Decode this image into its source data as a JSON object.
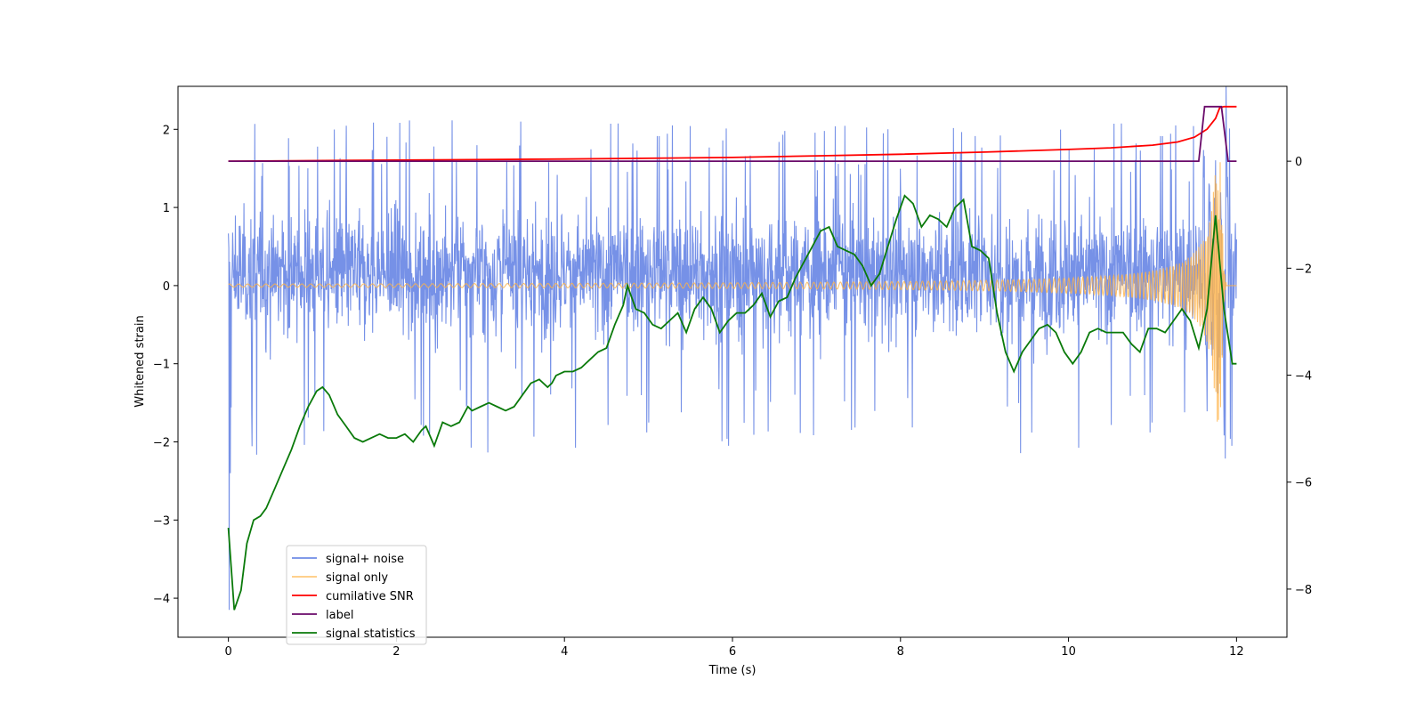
{
  "chart_data": {
    "type": "line",
    "title": "",
    "xlabel": "Time (s)",
    "ylabel": "Whitened strain",
    "xlim": [
      -0.6,
      12.6
    ],
    "ylim": [
      -4.5,
      2.55
    ],
    "ylim_right": [
      -8.9,
      1.4
    ],
    "xticks": [
      0,
      2,
      4,
      6,
      8,
      10,
      12
    ],
    "yticks": [
      -4,
      -3,
      -2,
      -1,
      0,
      1,
      2
    ],
    "yticks_right": [
      -8,
      -6,
      -4,
      -2,
      0
    ],
    "tick_labels": {
      "x": [
        "0",
        "2",
        "4",
        "6",
        "8",
        "10",
        "12"
      ],
      "y": [
        "−4",
        "−3",
        "−2",
        "−1",
        "0",
        "1",
        "2"
      ],
      "y_right": [
        "−8",
        "−6",
        "−4",
        "−2",
        "0"
      ]
    },
    "legend_position": "lower-left",
    "series": [
      {
        "name": "signal+ noise",
        "color": "#6f8be6",
        "axis": "left",
        "kind": "noise_band",
        "band": {
          "t": [
            0,
            2,
            4,
            6,
            8,
            10,
            12
          ],
          "low_typical": -1.2,
          "high_typical": 1.5,
          "spike_max": 2.15,
          "spike_min": -2.2
        },
        "start_dip": -4.15
      },
      {
        "name": "signal only",
        "color": "#ffb347",
        "axis": "left",
        "kind": "chirp",
        "t_merge": 11.82,
        "amp_early": 0.02,
        "amp_peak": 1.75
      },
      {
        "name": "cumilative SNR",
        "color": "#ff0000",
        "axis": "right",
        "x": [
          0,
          2,
          4,
          6,
          7,
          8,
          9,
          10,
          10.5,
          11,
          11.3,
          11.5,
          11.65,
          11.75,
          11.8,
          11.85,
          12
        ],
        "y": [
          0,
          0.02,
          0.04,
          0.07,
          0.1,
          0.13,
          0.17,
          0.22,
          0.25,
          0.3,
          0.36,
          0.45,
          0.6,
          0.8,
          1.0,
          1.02,
          1.02
        ]
      },
      {
        "name": "label",
        "color": "#6a0a6a",
        "axis": "right",
        "x": [
          0,
          11.55,
          11.62,
          11.82,
          11.9,
          12
        ],
        "y": [
          0,
          0,
          1.02,
          1.02,
          0,
          0
        ]
      },
      {
        "name": "signal statistics",
        "color": "#0a7a0a",
        "axis": "left",
        "x": [
          0,
          0.07,
          0.15,
          0.22,
          0.3,
          0.38,
          0.45,
          0.55,
          0.65,
          0.75,
          0.85,
          0.95,
          1.05,
          1.12,
          1.2,
          1.3,
          1.4,
          1.5,
          1.6,
          1.7,
          1.8,
          1.9,
          2.0,
          2.1,
          2.2,
          2.3,
          2.35,
          2.45,
          2.55,
          2.65,
          2.75,
          2.85,
          2.9,
          3.0,
          3.1,
          3.2,
          3.3,
          3.4,
          3.5,
          3.6,
          3.7,
          3.8,
          3.85,
          3.9,
          4.0,
          4.1,
          4.2,
          4.3,
          4.4,
          4.5,
          4.6,
          4.7,
          4.75,
          4.85,
          4.95,
          5.05,
          5.15,
          5.25,
          5.35,
          5.45,
          5.55,
          5.65,
          5.75,
          5.85,
          5.95,
          6.05,
          6.15,
          6.25,
          6.35,
          6.45,
          6.55,
          6.65,
          6.75,
          6.85,
          6.95,
          7.05,
          7.15,
          7.25,
          7.35,
          7.45,
          7.55,
          7.65,
          7.75,
          7.85,
          7.95,
          8.05,
          8.15,
          8.25,
          8.35,
          8.45,
          8.55,
          8.65,
          8.75,
          8.85,
          8.95,
          9.05,
          9.15,
          9.25,
          9.35,
          9.45,
          9.55,
          9.65,
          9.75,
          9.85,
          9.95,
          10.05,
          10.15,
          10.25,
          10.35,
          10.45,
          10.55,
          10.65,
          10.75,
          10.85,
          10.95,
          11.05,
          11.15,
          11.25,
          11.35,
          11.45,
          11.55,
          11.65,
          11.75,
          11.85,
          11.95,
          12
        ],
        "y": [
          -3.1,
          -4.15,
          -3.9,
          -3.3,
          -3.0,
          -2.95,
          -2.85,
          -2.6,
          -2.35,
          -2.1,
          -1.8,
          -1.55,
          -1.35,
          -1.3,
          -1.4,
          -1.65,
          -1.8,
          -1.95,
          -2.0,
          -1.95,
          -1.9,
          -1.95,
          -1.95,
          -1.9,
          -2.0,
          -1.85,
          -1.8,
          -2.05,
          -1.75,
          -1.8,
          -1.75,
          -1.55,
          -1.6,
          -1.55,
          -1.5,
          -1.55,
          -1.6,
          -1.55,
          -1.4,
          -1.25,
          -1.2,
          -1.3,
          -1.25,
          -1.15,
          -1.1,
          -1.1,
          -1.05,
          -0.95,
          -0.85,
          -0.8,
          -0.5,
          -0.25,
          0.0,
          -0.3,
          -0.35,
          -0.5,
          -0.55,
          -0.45,
          -0.35,
          -0.6,
          -0.3,
          -0.15,
          -0.3,
          -0.6,
          -0.45,
          -0.35,
          -0.35,
          -0.25,
          -0.1,
          -0.4,
          -0.2,
          -0.15,
          0.1,
          0.3,
          0.5,
          0.7,
          0.75,
          0.5,
          0.45,
          0.4,
          0.25,
          0.0,
          0.15,
          0.5,
          0.85,
          1.15,
          1.05,
          0.75,
          0.9,
          0.85,
          0.75,
          1.0,
          1.1,
          0.5,
          0.45,
          0.35,
          -0.35,
          -0.85,
          -1.1,
          -0.85,
          -0.7,
          -0.55,
          -0.5,
          -0.6,
          -0.85,
          -1.0,
          -0.85,
          -0.6,
          -0.55,
          -0.6,
          -0.6,
          -0.6,
          -0.75,
          -0.85,
          -0.55,
          -0.55,
          -0.6,
          -0.45,
          -0.3,
          -0.45,
          -0.8,
          -0.3,
          0.9,
          -0.3,
          -1.0,
          -1.0
        ]
      }
    ]
  }
}
